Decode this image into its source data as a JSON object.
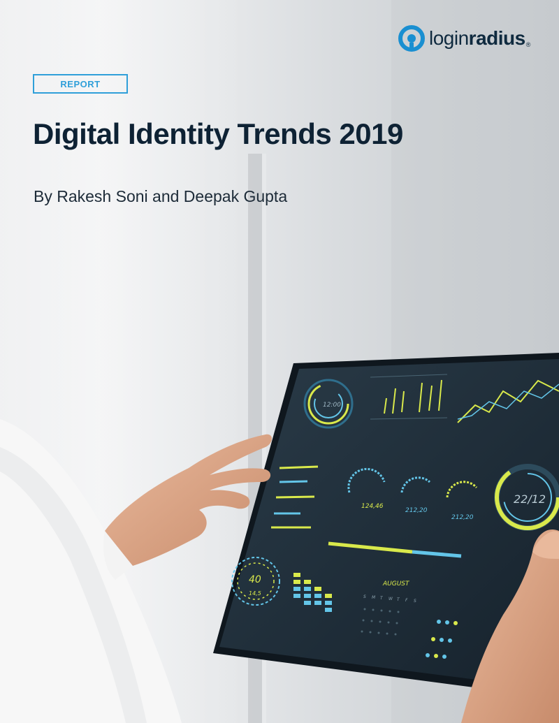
{
  "brand": {
    "prefix": "login",
    "suffix": "radius",
    "mark": "®",
    "colors": {
      "blue": "#1a8fd1",
      "navy": "#0f2a3f"
    }
  },
  "badge": "REPORT",
  "title": "Digital Identity Trends 2019",
  "byline": "By Rakesh Soni and Deepak Gupta",
  "dashboard": {
    "ring_label": "22/12",
    "gauge_values": [
      "124,46",
      "212,20",
      "212,20"
    ],
    "month": "AUGUST",
    "weekdays": [
      "S",
      "M",
      "T",
      "W",
      "T",
      "F",
      "S"
    ],
    "speed_value": "40",
    "speed_sub": "14,5",
    "small_ring_label": "12:00"
  }
}
